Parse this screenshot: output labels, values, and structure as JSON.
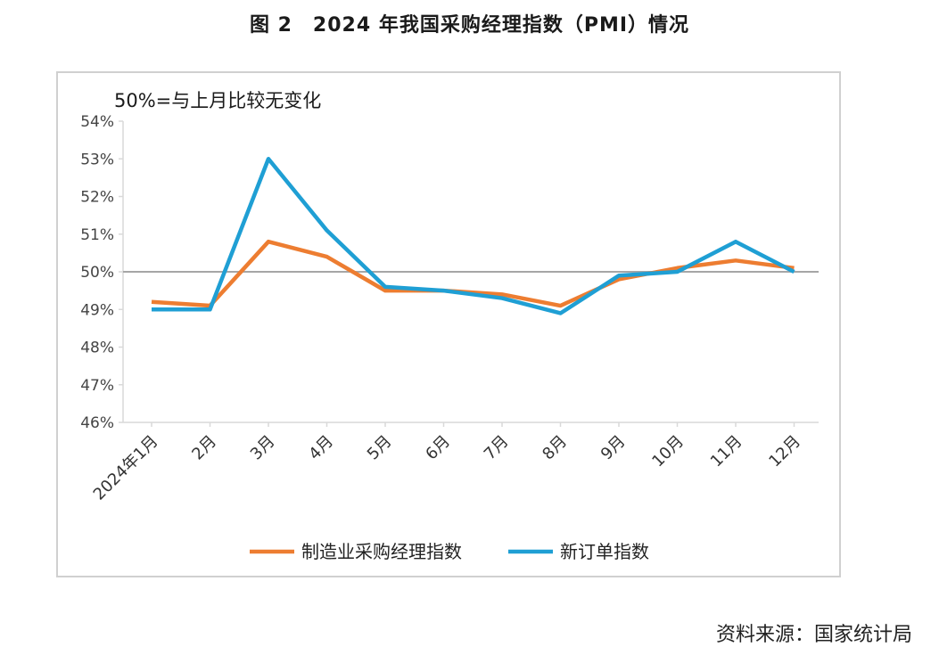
{
  "header": {
    "title": "图 2　2024 年我国采购经理指数（PMI）情况"
  },
  "footer": {
    "source": "资料来源：国家统计局"
  },
  "chart_data": {
    "type": "line",
    "title": "",
    "annotation": "50%=与上月比较无变化",
    "xlabel": "",
    "ylabel": "",
    "categories": [
      "2024年1月",
      "2月",
      "3月",
      "4月",
      "5月",
      "6月",
      "7月",
      "8月",
      "9月",
      "10月",
      "11月",
      "12月"
    ],
    "series": [
      {
        "name": "制造业采购经理指数",
        "color": "#ED7D31",
        "values": [
          49.2,
          49.1,
          50.8,
          50.4,
          49.5,
          49.5,
          49.4,
          49.1,
          49.8,
          50.1,
          50.3,
          50.1
        ]
      },
      {
        "name": "新订单指数",
        "color": "#1F9FD4",
        "values": [
          49.0,
          49.0,
          53.0,
          51.1,
          49.6,
          49.5,
          49.3,
          48.9,
          49.9,
          50.0,
          50.8,
          50.0
        ]
      }
    ],
    "ylim": [
      46,
      54
    ],
    "yticks": [
      "46%",
      "47%",
      "48%",
      "49%",
      "50%",
      "51%",
      "52%",
      "53%",
      "54%"
    ],
    "reference_line": 50,
    "reference_color": "#A6A6A6",
    "axis_color": "#D9D9D9",
    "grid": false,
    "legend_position": "bottom"
  }
}
